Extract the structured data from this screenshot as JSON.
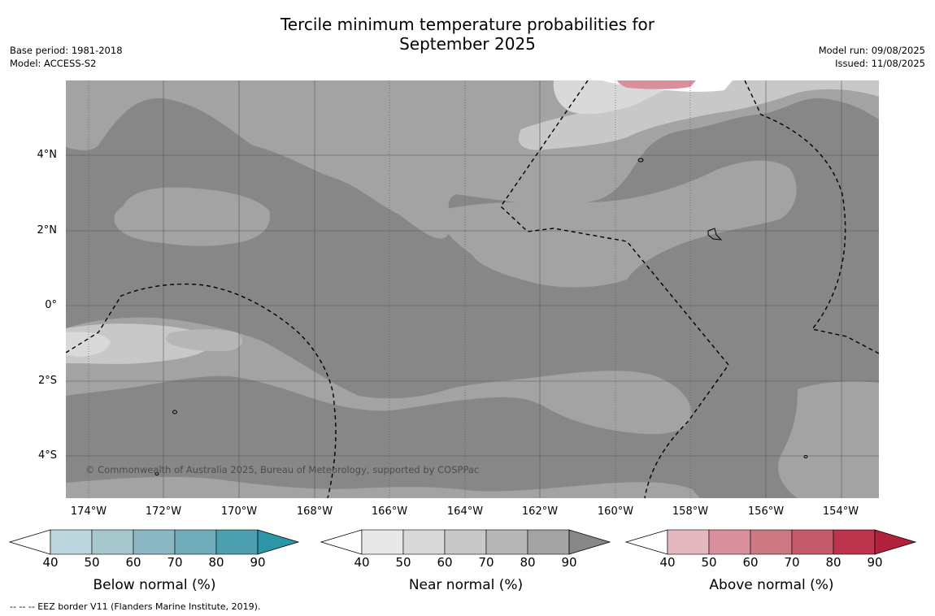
{
  "header": {
    "title_line1": "Tercile minimum temperature probabilities for",
    "title_line2": "September 2025",
    "base_period": "Base period: 1981-2018",
    "model": "Model: ACCESS-S2",
    "model_run": "Model run: 09/08/2025",
    "issued": "Issued: 11/08/2025"
  },
  "map": {
    "copyright": "© Commonwealth of Australia 2025, Bureau of Meteorology, supported by COSPPac",
    "lat_labels": [
      "4°N",
      "2°N",
      "0°",
      "2°S",
      "4°S"
    ],
    "lon_labels": [
      "174°W",
      "172°W",
      "170°W",
      "168°W",
      "166°W",
      "164°W",
      "162°W",
      "160°W",
      "158°W",
      "156°W",
      "154°W"
    ],
    "colors": {
      "near_90": "#878787",
      "near_80": "#a3a3a3",
      "near_70": "#b6b6b6",
      "near_60": "#c8c8c8",
      "near_50": "#d9d9d9",
      "above_50": "#da909c"
    }
  },
  "colorbars": [
    {
      "id": "below",
      "title": "Below normal (%)",
      "ticks": [
        "40",
        "50",
        "60",
        "70",
        "80",
        "90"
      ],
      "colors": [
        "#bdd5dc",
        "#a6c8cd",
        "#8bb8c3",
        "#6fadba",
        "#4b9fae",
        "#2c95a7"
      ]
    },
    {
      "id": "near",
      "title": "Near normal (%)",
      "ticks": [
        "40",
        "50",
        "60",
        "70",
        "80",
        "90"
      ],
      "colors": [
        "#e8e8e8",
        "#d9d9d9",
        "#c8c8c8",
        "#b6b6b6",
        "#a3a3a3",
        "#878787"
      ]
    },
    {
      "id": "above",
      "title": "Above normal (%)",
      "ticks": [
        "40",
        "50",
        "60",
        "70",
        "80",
        "90"
      ],
      "colors": [
        "#e3b8bf",
        "#da909c",
        "#ce7883",
        "#c55b6a",
        "#bc354d",
        "#b3213d"
      ]
    }
  ],
  "footnote": "--  --  -- EEZ border V11 (Flanders Marine Institute, 2019)."
}
